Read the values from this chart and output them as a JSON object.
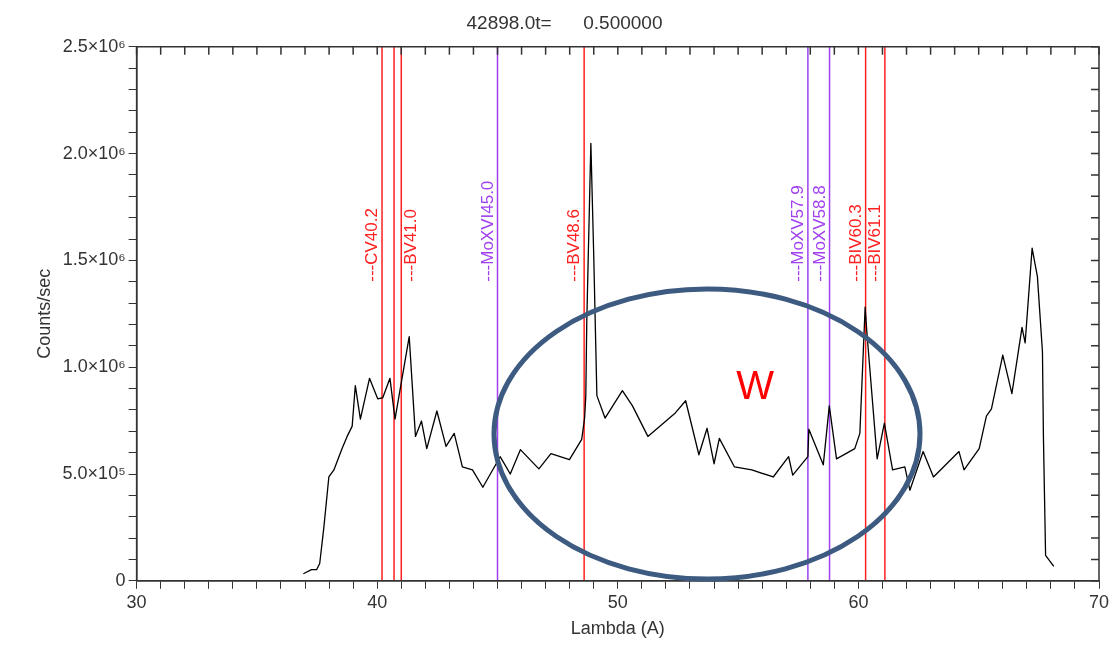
{
  "chart_data": {
    "type": "line",
    "title": "42898.0t=      0.500000",
    "xlabel": "Lambda (A)",
    "ylabel": "Counts/sec",
    "x": [
      36.93,
      37.27,
      37.48,
      37.61,
      37.78,
      37.99,
      38.2,
      38.54,
      38.75,
      38.96,
      39.09,
      39.3,
      39.68,
      40.02,
      40.23,
      40.53,
      40.74,
      41.33,
      41.59,
      41.84,
      42.06,
      42.48,
      42.86,
      43.2,
      43.54,
      43.96,
      44.39,
      45.11,
      45.53,
      45.95,
      46.72,
      47.22,
      47.99,
      48.5,
      48.62,
      48.67,
      48.71,
      48.88,
      49.0,
      49.13,
      49.47,
      50.19,
      50.61,
      51.25,
      52.39,
      52.82,
      53.37,
      53.71,
      54.0,
      54.22,
      54.85,
      55.57,
      56.46,
      57.1,
      57.27,
      57.9,
      57.94,
      58.54,
      58.79,
      59.09,
      59.85,
      60.06,
      60.28,
      60.36,
      60.78,
      61.08,
      61.42,
      61.93,
      62.14,
      62.69,
      63.12,
      64.18,
      64.39,
      65.02,
      65.32,
      65.53,
      66.0,
      66.38,
      66.8,
      66.93,
      67.22,
      67.44,
      67.65,
      67.69,
      67.78,
      68.12
    ],
    "series": [
      {
        "color": "#000000",
        "values": [
          33000,
          52000,
          52000,
          81000,
          248000,
          486000,
          519000,
          619000,
          676000,
          724000,
          914000,
          757000,
          948000,
          852000,
          857000,
          948000,
          757000,
          1143000,
          676000,
          748000,
          619000,
          795000,
          629000,
          690000,
          533000,
          519000,
          438000,
          581000,
          500000,
          614000,
          524000,
          595000,
          567000,
          662000,
          762000,
          867000,
          1214000,
          2048000,
          1519000,
          867000,
          762000,
          890000,
          819000,
          676000,
          786000,
          843000,
          590000,
          714000,
          548000,
          667000,
          533000,
          519000,
          486000,
          581000,
          495000,
          581000,
          710000,
          543000,
          819000,
          571000,
          619000,
          690000,
          1281000,
          1152000,
          571000,
          738000,
          519000,
          533000,
          424000,
          605000,
          486000,
          605000,
          519000,
          619000,
          771000,
          805000,
          1057000,
          876000,
          1186000,
          1114000,
          1557000,
          1424000,
          1071000,
          676000,
          119000,
          67000
        ]
      }
    ],
    "xlim": [
      30,
      70
    ],
    "xticks": [
      30,
      {
        "value": 31,
        "label": null
      },
      {
        "value": 32,
        "label": null
      },
      {
        "value": 33,
        "label": null
      },
      {
        "value": 34,
        "label": null
      },
      {
        "value": 35,
        "label": null
      },
      {
        "value": 36,
        "label": null
      },
      {
        "value": 37,
        "label": null
      },
      {
        "value": 38,
        "label": null
      },
      {
        "value": 39,
        "label": null
      },
      40,
      {
        "value": 41,
        "label": null
      },
      {
        "value": 42,
        "label": null
      },
      {
        "value": 43,
        "label": null
      },
      {
        "value": 44,
        "label": null
      },
      {
        "value": 45,
        "label": null
      },
      {
        "value": 46,
        "label": null
      },
      {
        "value": 47,
        "label": null
      },
      {
        "value": 48,
        "label": null
      },
      {
        "value": 49,
        "label": null
      },
      50,
      {
        "value": 51,
        "label": null
      },
      {
        "value": 52,
        "label": null
      },
      {
        "value": 53,
        "label": null
      },
      {
        "value": 54,
        "label": null
      },
      {
        "value": 55,
        "label": null
      },
      {
        "value": 56,
        "label": null
      },
      {
        "value": 57,
        "label": null
      },
      {
        "value": 58,
        "label": null
      },
      {
        "value": 59,
        "label": null
      },
      60,
      {
        "value": 61,
        "label": null
      },
      {
        "value": 62,
        "label": null
      },
      {
        "value": 63,
        "label": null
      },
      {
        "value": 64,
        "label": null
      },
      {
        "value": 65,
        "label": null
      },
      {
        "value": 66,
        "label": null
      },
      {
        "value": 67,
        "label": null
      },
      {
        "value": 68,
        "label": null
      },
      {
        "value": 69,
        "label": null
      },
      70
    ],
    "ylim": [
      0,
      2500000
    ],
    "yticks": [
      0,
      {
        "value": 100000,
        "label": null
      },
      {
        "value": 200000,
        "label": null
      },
      {
        "value": 300000,
        "label": null
      },
      {
        "value": 400000,
        "label": null
      },
      {
        "value": 500000,
        "label": "5.0×10⁵"
      },
      {
        "value": 600000,
        "label": null
      },
      {
        "value": 700000,
        "label": null
      },
      {
        "value": 800000,
        "label": null
      },
      {
        "value": 900000,
        "label": null
      },
      {
        "value": 1000000,
        "label": "1.0×10⁶"
      },
      {
        "value": 1100000,
        "label": null
      },
      {
        "value": 1200000,
        "label": null
      },
      {
        "value": 1300000,
        "label": null
      },
      {
        "value": 1400000,
        "label": null
      },
      {
        "value": 1500000,
        "label": "1.5×10⁶"
      },
      {
        "value": 1600000,
        "label": null
      },
      {
        "value": 1700000,
        "label": null
      },
      {
        "value": 1800000,
        "label": null
      },
      {
        "value": 1900000,
        "label": null
      },
      {
        "value": 2000000,
        "label": "2.0×10⁶"
      },
      {
        "value": 2100000,
        "label": null
      },
      {
        "value": 2200000,
        "label": null
      },
      {
        "value": 2300000,
        "label": null
      },
      {
        "value": 2400000,
        "label": null
      },
      {
        "value": 2500000,
        "label": "2.5×10⁶"
      }
    ],
    "ref_lines": [
      {
        "axis": "x",
        "value": 40.2,
        "label": "---CV40.2",
        "color": "#ff2020"
      },
      {
        "axis": "x",
        "value": 40.7,
        "label": null,
        "color": "#ff2020"
      },
      {
        "axis": "x",
        "value": 41.0,
        "label": "---BV41.0",
        "color": "#ff2020"
      },
      {
        "axis": "x",
        "value": 45.0,
        "label": "---MoXVI45.0",
        "color": "#a040f0"
      },
      {
        "axis": "x",
        "value": 48.6,
        "label": "---BV48.6",
        "color": "#ff2020"
      },
      {
        "axis": "x",
        "value": 57.9,
        "label": "---MoXV57.9",
        "color": "#a040f0"
      },
      {
        "axis": "x",
        "value": 58.8,
        "label": "---MoXV58.8",
        "color": "#a040f0"
      },
      {
        "axis": "x",
        "value": 60.3,
        "label": "---BIV60.3",
        "color": "#ff2020"
      },
      {
        "axis": "x",
        "value": 61.1,
        "label": "---BIV61.1",
        "color": "#ff2020"
      }
    ],
    "annotations": [
      "W"
    ],
    "grid": false,
    "legend": false,
    "marker": "none",
    "line_style": "solid"
  }
}
